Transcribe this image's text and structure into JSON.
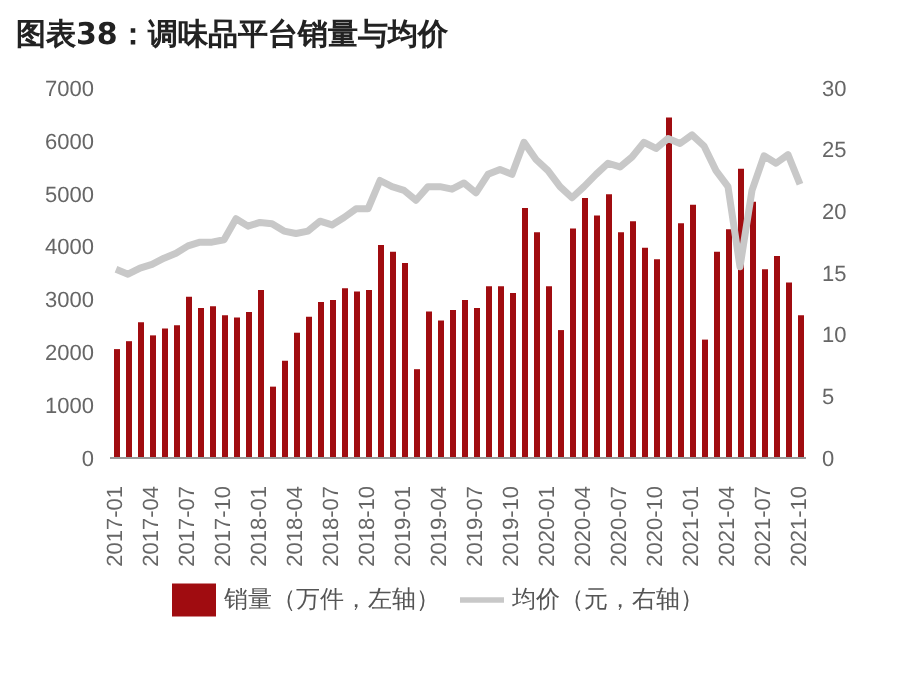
{
  "chart_data": {
    "type": "bar",
    "title": "图表38：调味品平台销量与均价",
    "categories": [
      "2017-01",
      null,
      null,
      "2017-04",
      null,
      null,
      "2017-07",
      null,
      null,
      "2017-10",
      null,
      null,
      "2018-01",
      null,
      null,
      "2018-04",
      null,
      null,
      "2018-07",
      null,
      null,
      "2018-10",
      null,
      null,
      "2019-01",
      null,
      null,
      "2019-04",
      null,
      null,
      "2019-07",
      null,
      null,
      "2019-10",
      null,
      null,
      "2020-01",
      null,
      null,
      "2020-04",
      null,
      null,
      "2020-07",
      null,
      null,
      "2020-10",
      null,
      null,
      "2021-01",
      null,
      null,
      "2021-04",
      null,
      null,
      "2021-07",
      null,
      null,
      "2021-10"
    ],
    "series": [
      {
        "name": "销量（万件，左轴）",
        "color": "#a00c10",
        "values": [
          2060,
          2210,
          2570,
          2320,
          2450,
          2510,
          3050,
          2840,
          2870,
          2700,
          2660,
          2760,
          3180,
          1350,
          1840,
          2370,
          2670,
          2950,
          2990,
          3210,
          3150,
          3180,
          4030,
          3900,
          3690,
          1680,
          2770,
          2600,
          2800,
          2990,
          2840,
          3250,
          3250,
          3120,
          4730,
          4270,
          3250,
          2420,
          4340,
          4920,
          4590,
          4990,
          4270,
          4480,
          3980,
          3760,
          6440,
          4440,
          4790,
          2240,
          3900,
          4330,
          5470,
          4850,
          3570,
          3820,
          3320,
          2700
        ]
      },
      {
        "name": "均价（元，右轴）",
        "type": "line",
        "axis": "y2",
        "color": "#c8c8c8",
        "values": [
          15.3,
          14.9,
          15.4,
          15.7,
          16.2,
          16.6,
          17.2,
          17.5,
          17.5,
          17.7,
          19.4,
          18.8,
          19.1,
          19.0,
          18.4,
          18.2,
          18.4,
          19.2,
          18.9,
          19.5,
          20.2,
          20.2,
          22.5,
          22.0,
          21.7,
          20.9,
          22.0,
          22.0,
          21.8,
          22.3,
          21.5,
          23.0,
          23.4,
          23.0,
          25.6,
          24.2,
          23.3,
          22.0,
          21.1,
          22.0,
          23.0,
          23.9,
          23.6,
          24.4,
          25.6,
          25.1,
          25.9,
          25.5,
          26.2,
          25.3,
          23.3,
          22.0,
          15.5,
          21.7,
          24.5,
          23.9,
          24.6,
          22.2
        ]
      }
    ],
    "ylim": [
      0,
      7000
    ],
    "yticks": [
      0,
      1000,
      2000,
      3000,
      4000,
      5000,
      6000,
      7000
    ],
    "y2lim": [
      0,
      30
    ],
    "y2ticks": [
      0,
      5,
      10,
      15,
      20,
      25,
      30
    ],
    "grid": false,
    "legend": "bottom"
  }
}
